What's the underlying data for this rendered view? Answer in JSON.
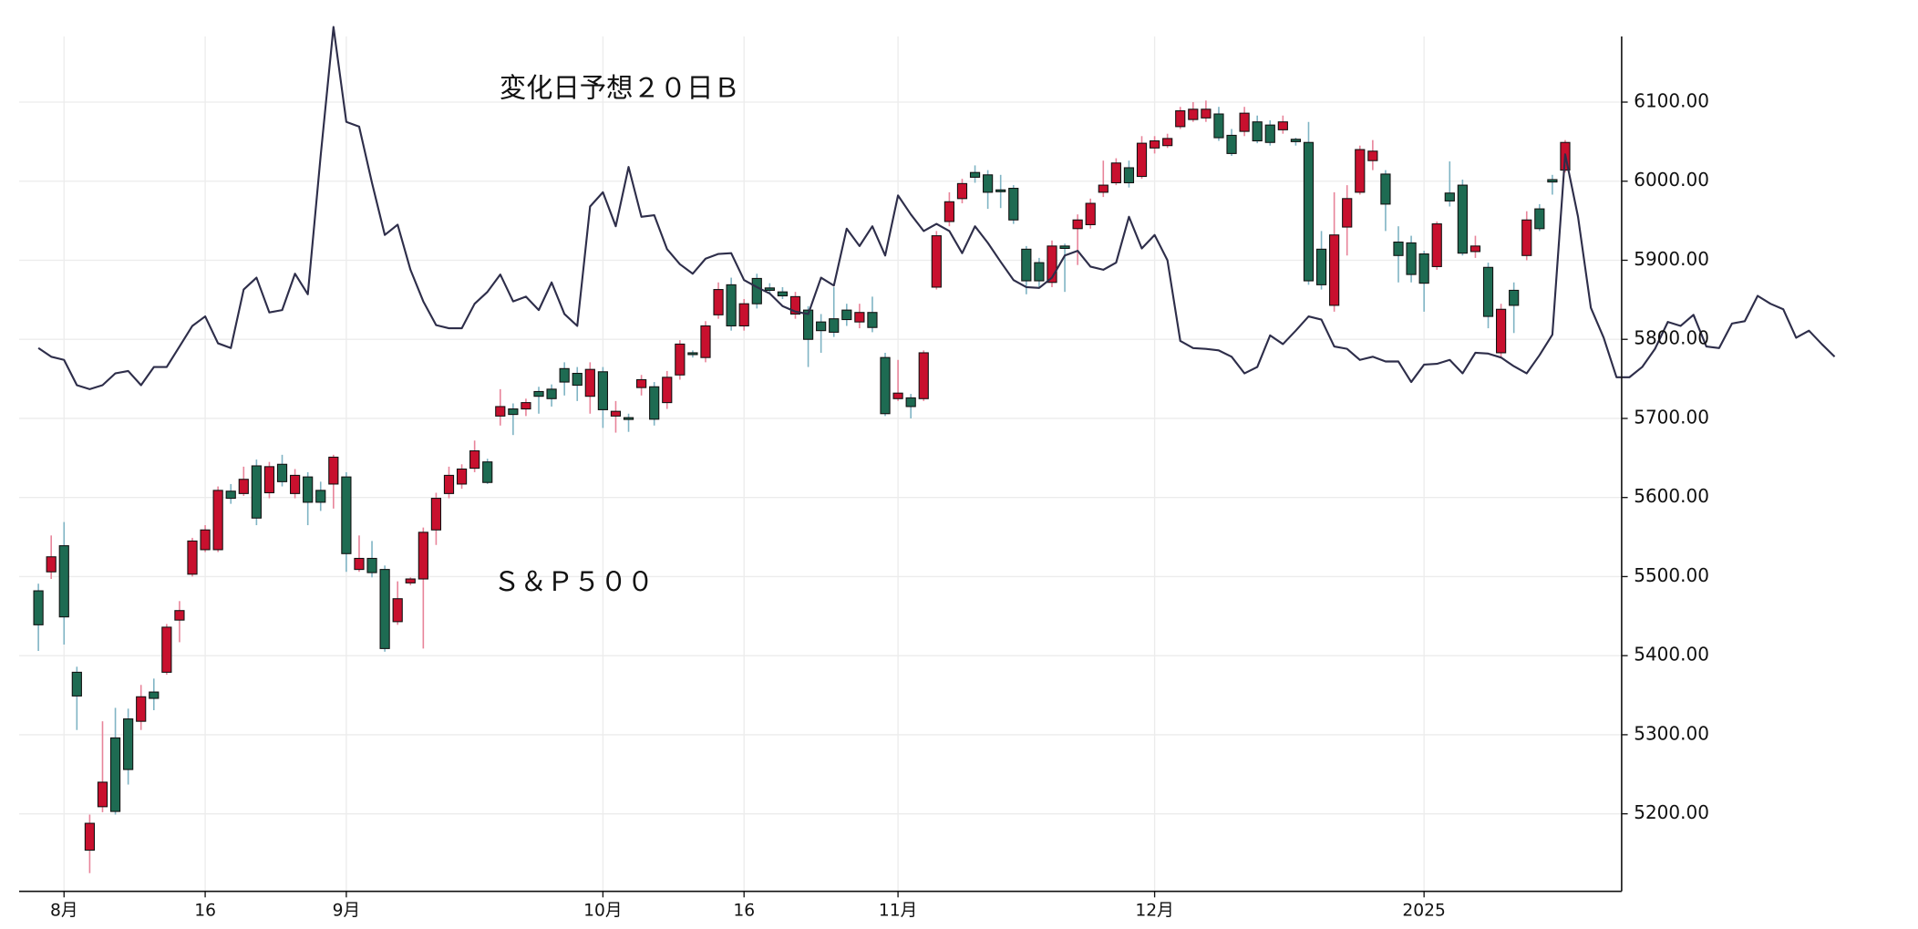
{
  "chart_data": {
    "type": "candlestick",
    "xlim": [
      -1.5,
      123.4
    ],
    "xticks": [
      {
        "value": 2,
        "label": "8月"
      },
      {
        "value": 13,
        "label": "16"
      },
      {
        "value": 24,
        "label": "9月"
      },
      {
        "value": 44,
        "label": "10月"
      },
      {
        "value": 55,
        "label": "16"
      },
      {
        "value": 67,
        "label": "11月"
      },
      {
        "value": 87,
        "label": "12月"
      },
      {
        "value": 108,
        "label": "2025"
      }
    ],
    "ylim": [
      5102,
      6183
    ],
    "yticks": [
      {
        "value": 5200,
        "label": "5200.00"
      },
      {
        "value": 5300,
        "label": "5300.00"
      },
      {
        "value": 5400,
        "label": "5400.00"
      },
      {
        "value": 5500,
        "label": "5500.00"
      },
      {
        "value": 5600,
        "label": "5600.00"
      },
      {
        "value": 5700,
        "label": "5700.00"
      },
      {
        "value": 5800,
        "label": "5800.00"
      },
      {
        "value": 5900,
        "label": "5900.00"
      },
      {
        "value": 6000,
        "label": "6000.00"
      },
      {
        "value": 6100,
        "label": "6100.00"
      }
    ],
    "grid": true,
    "series": [
      {
        "name": "Ｓ＆Ｐ５００",
        "type": "candlestick",
        "up_color": "#c8102e",
        "down_color": "#1e6b52",
        "up_wick_color": "#e8849a",
        "down_wick_color": "#7fb4c4",
        "open": [
          5482,
          5506,
          5539,
          5379,
          5154,
          5209,
          5296,
          5320,
          5317,
          5354,
          5379,
          5445,
          5503,
          5534,
          5534,
          5608,
          5605,
          5640,
          5606,
          5642,
          5605,
          5626,
          5609,
          5617,
          5626,
          5509,
          5523,
          5509,
          5443,
          5492,
          5497,
          5559,
          5605,
          5617,
          5637,
          5645,
          5703,
          5712,
          5712,
          5734,
          5737,
          5763,
          5757,
          5728,
          5759,
          5703,
          5701,
          5739,
          5740,
          5720,
          5755,
          5783,
          5777,
          5831,
          5869,
          5817,
          5877,
          5865,
          5860,
          5832,
          5837,
          5822,
          5826,
          5837,
          5822,
          5834,
          5777,
          5725,
          5726,
          5725,
          5866,
          5949,
          5978,
          6011,
          6008,
          5989,
          5991,
          5914,
          5897,
          5872,
          5918,
          5940,
          5945,
          5986,
          5998,
          6017,
          6006,
          6042,
          6045,
          6069,
          6078,
          6080,
          6085,
          6058,
          6063,
          6075,
          6071,
          6065,
          6053,
          6049,
          5914,
          5843,
          5942,
          5986,
          6026,
          6009,
          5923,
          5922,
          5908,
          5892,
          5985,
          5995,
          5911,
          5891,
          5783,
          5862,
          5906,
          5965,
          6002,
          6014
        ],
        "high": [
          5491,
          5552,
          5569,
          5386,
          5199,
          5317,
          5334,
          5333,
          5363,
          5371,
          5440,
          5469,
          5549,
          5565,
          5614,
          5617,
          5639,
          5648,
          5645,
          5654,
          5636,
          5632,
          5620,
          5654,
          5632,
          5552,
          5545,
          5514,
          5494,
          5499,
          5562,
          5606,
          5639,
          5642,
          5672,
          5649,
          5737,
          5719,
          5725,
          5740,
          5743,
          5771,
          5765,
          5771,
          5765,
          5722,
          5706,
          5755,
          5746,
          5760,
          5799,
          5786,
          5823,
          5872,
          5878,
          5851,
          5883,
          5871,
          5866,
          5860,
          5842,
          5832,
          5866,
          5845,
          5845,
          5854,
          5783,
          5774,
          5731,
          5786,
          5937,
          5986,
          6003,
          6020,
          6014,
          6008,
          5995,
          5918,
          5903,
          5925,
          5921,
          5958,
          5978,
          6026,
          6029,
          6026,
          6057,
          6057,
          6060,
          6094,
          6100,
          6102,
          6094,
          6066,
          6094,
          6083,
          6077,
          6083,
          6055,
          6075,
          5937,
          5986,
          5995,
          6045,
          6052,
          6014,
          5943,
          5931,
          5912,
          5949,
          6025,
          6002,
          5931,
          5897,
          5845,
          5872,
          5962,
          5971,
          6008,
          6052
        ],
        "low": [
          5406,
          5497,
          5414,
          5306,
          5125,
          5202,
          5199,
          5237,
          5306,
          5331,
          5376,
          5417,
          5500,
          5531,
          5531,
          5592,
          5602,
          5565,
          5599,
          5614,
          5599,
          5565,
          5583,
          5586,
          5506,
          5506,
          5499,
          5405,
          5439,
          5489,
          5409,
          5540,
          5599,
          5611,
          5632,
          5617,
          5691,
          5679,
          5703,
          5706,
          5715,
          5729,
          5722,
          5706,
          5688,
          5682,
          5683,
          5729,
          5691,
          5712,
          5749,
          5777,
          5771,
          5826,
          5811,
          5811,
          5839,
          5858,
          5851,
          5826,
          5765,
          5783,
          5803,
          5817,
          5814,
          5809,
          5703,
          5722,
          5700,
          5722,
          5863,
          5943,
          5972,
          5998,
          5965,
          5966,
          5946,
          5857,
          5866,
          5866,
          5860,
          5894,
          5940,
          5980,
          5995,
          5992,
          6003,
          6035,
          6042,
          6066,
          6075,
          6075,
          6051,
          6032,
          6057,
          6048,
          6045,
          6060,
          6045,
          5869,
          5863,
          5835,
          5906,
          5983,
          6014,
          5937,
          5872,
          5872,
          5835,
          5888,
          5968,
          5906,
          5903,
          5814,
          5777,
          5808,
          5900,
          5937,
          5983,
          6011
        ],
        "close": [
          5439,
          5525,
          5449,
          5349,
          5188,
          5240,
          5203,
          5256,
          5348,
          5346,
          5436,
          5457,
          5545,
          5559,
          5609,
          5599,
          5623,
          5574,
          5639,
          5620,
          5628,
          5594,
          5594,
          5651,
          5529,
          5523,
          5505,
          5409,
          5472,
          5497,
          5556,
          5599,
          5628,
          5636,
          5659,
          5619,
          5715,
          5705,
          5720,
          5728,
          5725,
          5746,
          5742,
          5762,
          5711,
          5709,
          5700,
          5749,
          5699,
          5752,
          5794,
          5781,
          5817,
          5863,
          5817,
          5845,
          5845,
          5862,
          5855,
          5854,
          5800,
          5811,
          5809,
          5825,
          5834,
          5815,
          5706,
          5732,
          5715,
          5783,
          5931,
          5974,
          5997,
          6005,
          5986,
          5987,
          5951,
          5874,
          5874,
          5918,
          5915,
          5951,
          5972,
          5995,
          6023,
          5998,
          6048,
          6051,
          6054,
          6089,
          6091,
          6091,
          6055,
          6035,
          6086,
          6051,
          6049,
          6075,
          6050,
          5874,
          5869,
          5932,
          5978,
          6040,
          6038,
          5971,
          5906,
          5882,
          5871,
          5946,
          5975,
          5909,
          5918,
          5829,
          5838,
          5843,
          5951,
          5940,
          5999,
          6049
        ]
      },
      {
        "name": "変化日予想２０日Ｂ",
        "type": "line",
        "color": "#2e2e4a",
        "values": [
          5789,
          5778,
          5774,
          5742,
          5737,
          5742,
          5757,
          5760,
          5742,
          5765,
          5765,
          5791,
          5817,
          5829,
          5795,
          5789,
          5863,
          5878,
          5834,
          5837,
          5883,
          5857,
          6032,
          6195,
          6075,
          6069,
          5998,
          5932,
          5945,
          5888,
          5848,
          5818,
          5814,
          5814,
          5845,
          5860,
          5882,
          5848,
          5854,
          5837,
          5872,
          5832,
          5817,
          5968,
          5986,
          5943,
          6018,
          5955,
          5957,
          5914,
          5895,
          5883,
          5902,
          5908,
          5909,
          5875,
          5866,
          5858,
          5842,
          5835,
          5832,
          5878,
          5868,
          5940,
          5918,
          5943,
          5906,
          5982,
          5958,
          5937,
          5946,
          5937,
          5909,
          5943,
          5922,
          5898,
          5875,
          5866,
          5865,
          5878,
          5906,
          5912,
          5892,
          5888,
          5897,
          5955,
          5915,
          5932,
          5900,
          5798,
          5789,
          5788,
          5786,
          5778,
          5757,
          5765,
          5805,
          5794,
          5811,
          5829,
          5825,
          5791,
          5788,
          5774,
          5778,
          5772,
          5772,
          5746,
          5768,
          5769,
          5774,
          5757,
          5783,
          5782,
          5777,
          5766,
          5757,
          5780,
          5806,
          6034,
          5955,
          5840,
          5802,
          5752,
          5752,
          5765,
          5788,
          5822,
          5817,
          5831,
          5791,
          5789,
          5820,
          5823,
          5855,
          5845,
          5838,
          5802,
          5811,
          5794,
          5778
        ]
      }
    ]
  }
}
